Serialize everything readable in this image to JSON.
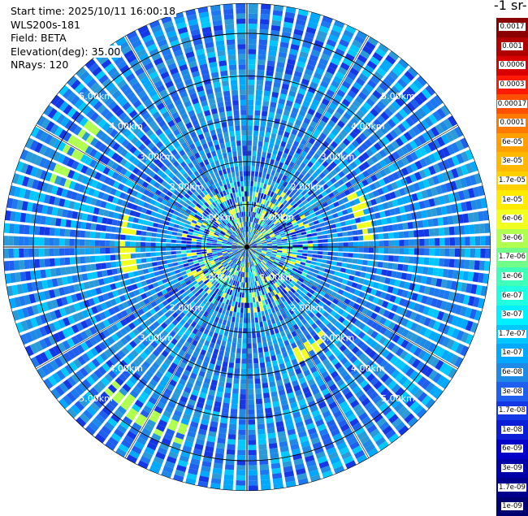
{
  "info": {
    "start_time": "Start time: 2025/10/11 16:00:18",
    "station": "WLS200s-181",
    "field": "Field: BETA",
    "elevation": "Elevation(deg): 35.00",
    "nrays": "NRays: 120"
  },
  "unit_label": "-1 sr-",
  "chart_data": {
    "type": "heatmap",
    "subtype": "polar PPI scan",
    "field": "BETA",
    "elevation_deg": 35.0,
    "n_rays": 120,
    "range_rings_km": [
      1,
      2,
      3,
      4,
      5
    ],
    "ring_labels": [
      "1.00km",
      "2.00km",
      "3.00km",
      "4.00km",
      "5.00km"
    ],
    "max_range_km": 5.7,
    "colorbar": {
      "labels": [
        "0.0017",
        "0.001",
        "0.0006",
        "0.0003",
        "0.00017",
        "0.0001",
        "6e-05",
        "3e-05",
        "1.7e-05",
        "1e-05",
        "6e-06",
        "3e-06",
        "1.7e-06",
        "1e-06",
        "6e-07",
        "3e-07",
        "1.7e-07",
        "1e-07",
        "6e-08",
        "3e-08",
        "1.7e-08",
        "1e-08",
        "6e-09",
        "3e-09",
        "1.7e-09",
        "1e-09"
      ],
      "colors": [
        "#8b0000",
        "#b00000",
        "#d80000",
        "#ff1a00",
        "#ff5000",
        "#ff7a00",
        "#ff9f00",
        "#ffb800",
        "#ffd000",
        "#ffea00",
        "#f0ff20",
        "#b0ff50",
        "#70ff88",
        "#40ffb8",
        "#20ffe0",
        "#00f0ff",
        "#00c8ff",
        "#00a8ff",
        "#1e8ae6",
        "#1e5ff0",
        "#1438e6",
        "#0a1ed8",
        "#0000c8",
        "#0000a8",
        "#00008c",
        "#000070"
      ]
    }
  }
}
